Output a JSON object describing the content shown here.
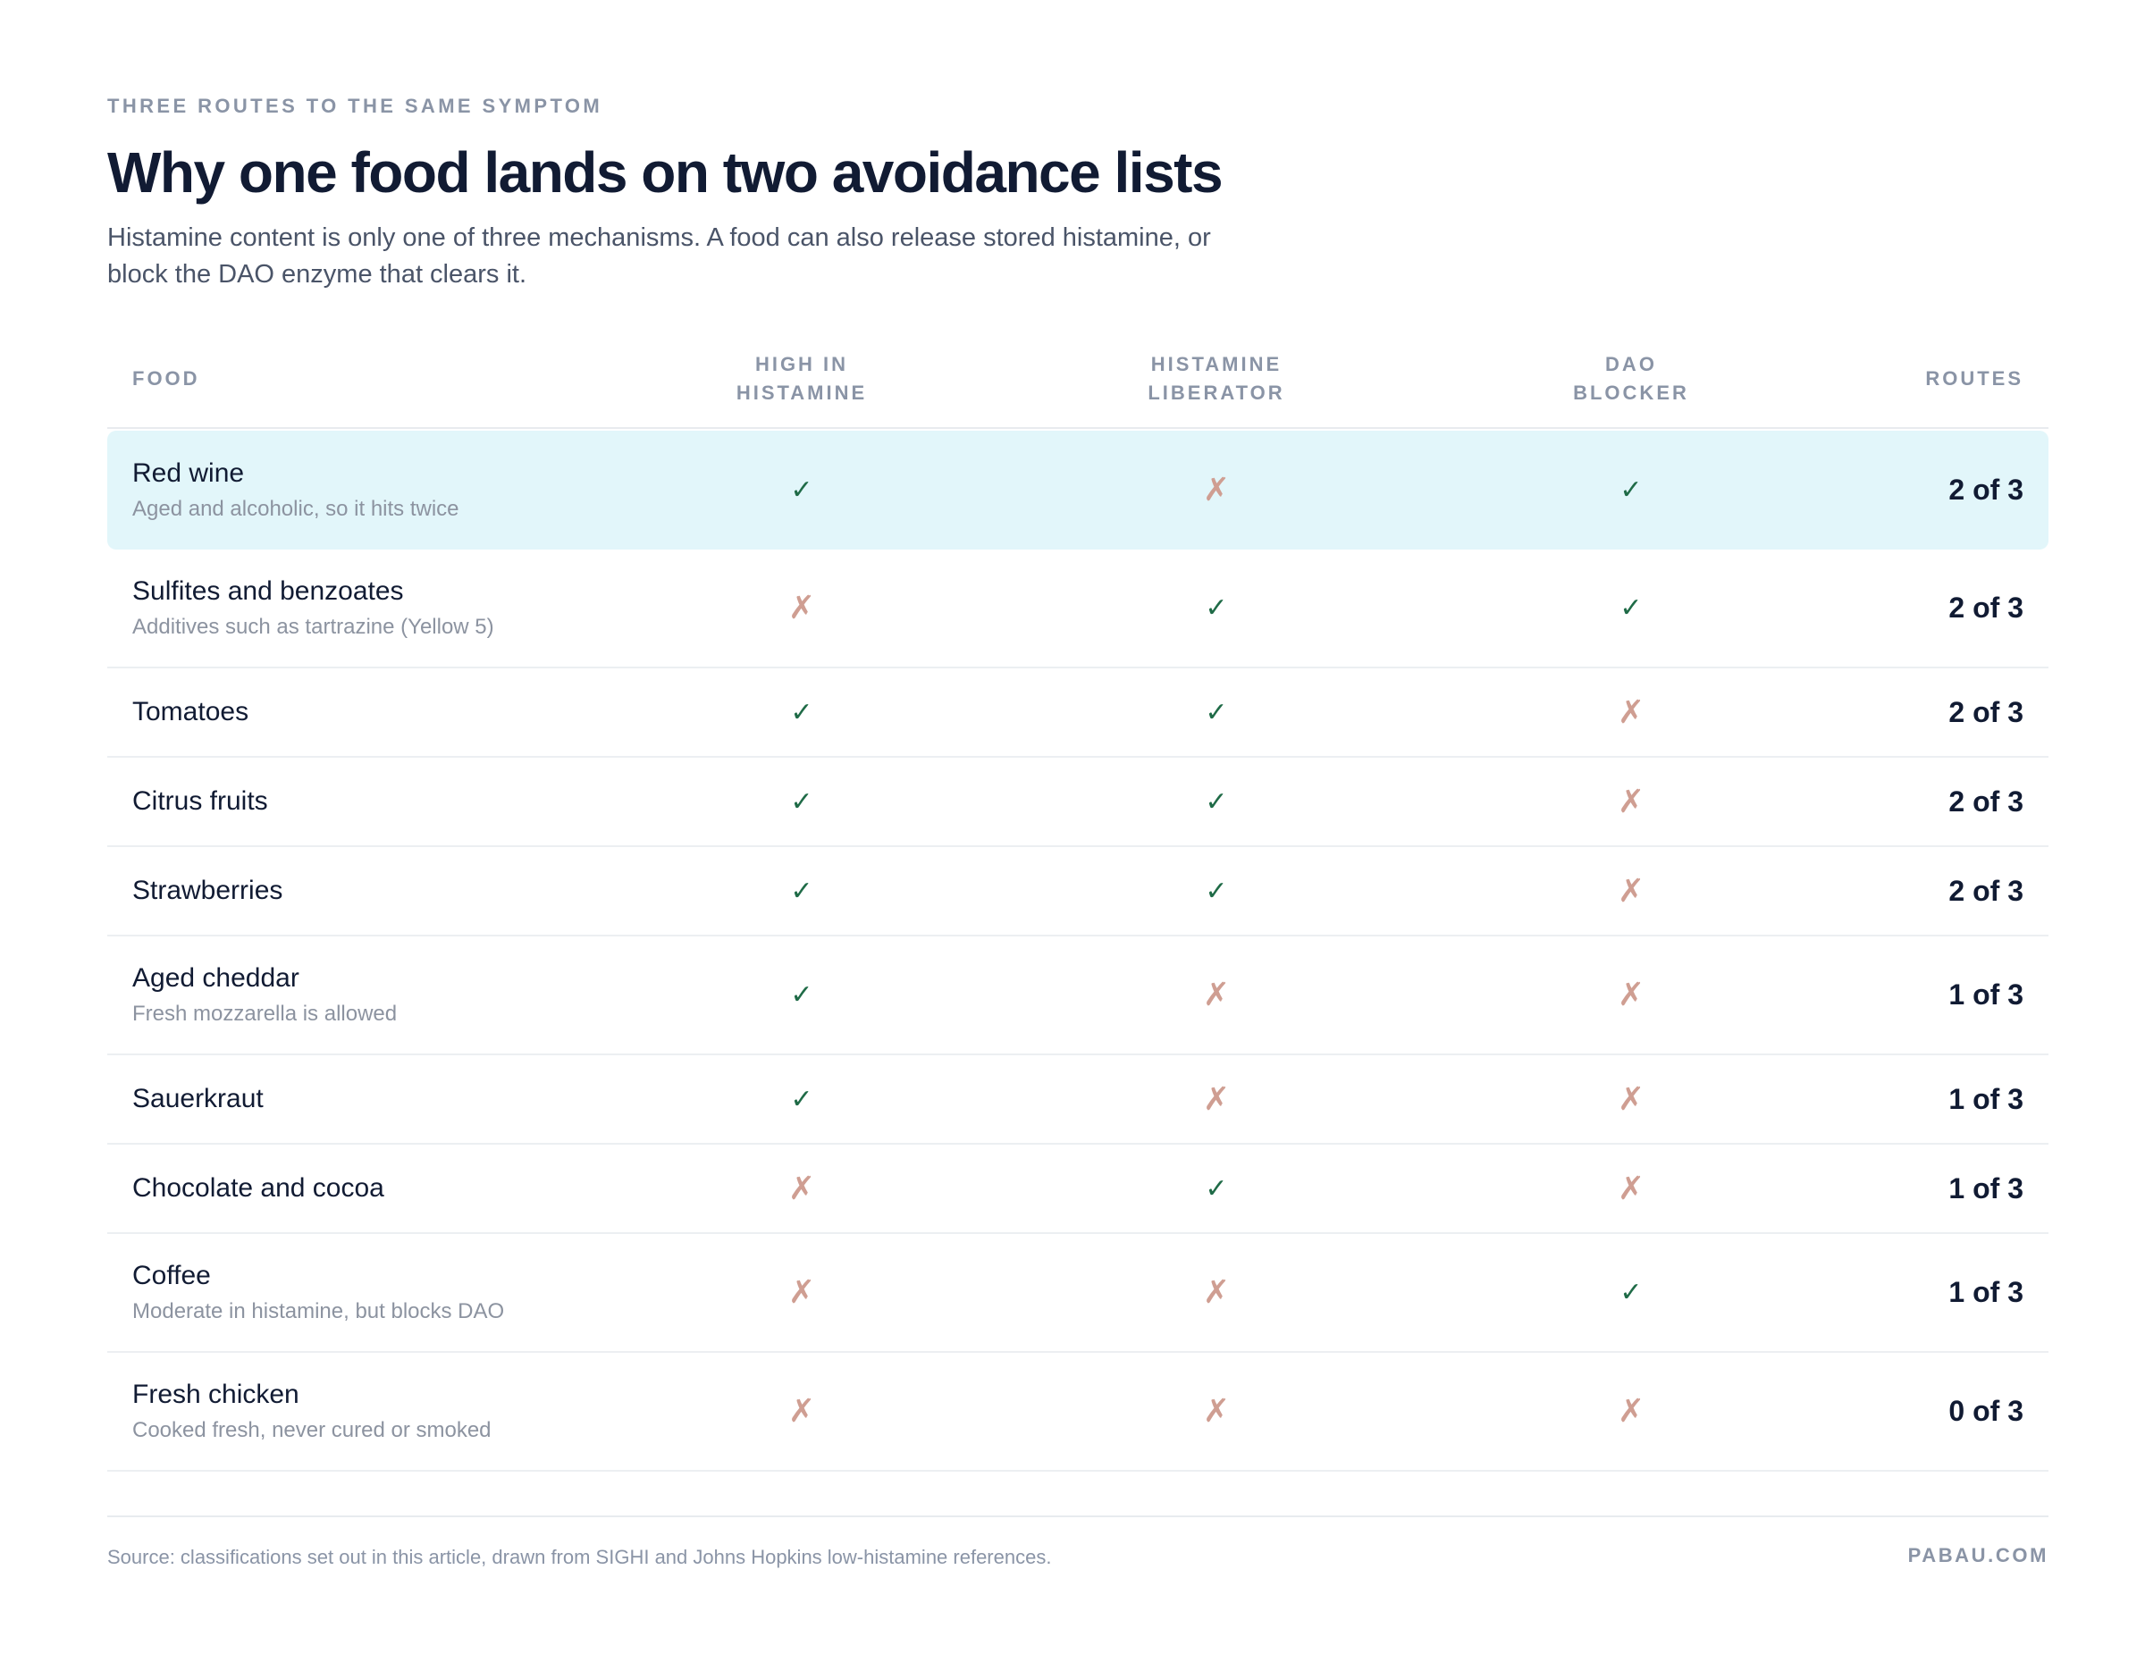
{
  "header": {
    "kicker": "THREE ROUTES TO THE SAME SYMPTOM",
    "title": "Why one food lands on two avoidance lists",
    "subtitle": "Histamine content is only one of three mechanisms. A food can also release stored histamine, or block the DAO enzyme that clears it."
  },
  "chart_data": {
    "type": "table",
    "columns": [
      "FOOD",
      "HIGH IN\nHISTAMINE",
      "HISTAMINE\nLIBERATOR",
      "DAO\nBLOCKER",
      "ROUTES"
    ],
    "rows": [
      {
        "food": "Red wine",
        "note": "Aged and alcoholic, so it hits twice",
        "high": true,
        "liberator": false,
        "dao": true,
        "routes": "2 of 3",
        "highlighted": true
      },
      {
        "food": "Sulfites and benzoates",
        "note": "Additives such as tartrazine (Yellow 5)",
        "high": false,
        "liberator": true,
        "dao": true,
        "routes": "2 of 3"
      },
      {
        "food": "Tomatoes",
        "note": "",
        "high": true,
        "liberator": true,
        "dao": false,
        "routes": "2 of 3"
      },
      {
        "food": "Citrus fruits",
        "note": "",
        "high": true,
        "liberator": true,
        "dao": false,
        "routes": "2 of 3"
      },
      {
        "food": "Strawberries",
        "note": "",
        "high": true,
        "liberator": true,
        "dao": false,
        "routes": "2 of 3"
      },
      {
        "food": "Aged cheddar",
        "note": "Fresh mozzarella is allowed",
        "high": true,
        "liberator": false,
        "dao": false,
        "routes": "1 of 3"
      },
      {
        "food": "Sauerkraut",
        "note": "",
        "high": true,
        "liberator": false,
        "dao": false,
        "routes": "1 of 3"
      },
      {
        "food": "Chocolate and cocoa",
        "note": "",
        "high": false,
        "liberator": true,
        "dao": false,
        "routes": "1 of 3"
      },
      {
        "food": "Coffee",
        "note": "Moderate in histamine, but blocks DAO",
        "high": false,
        "liberator": false,
        "dao": true,
        "routes": "1 of 3"
      },
      {
        "food": "Fresh chicken",
        "note": "Cooked fresh, never cured or smoked",
        "high": false,
        "liberator": false,
        "dao": false,
        "routes": "0 of 3"
      }
    ],
    "marks": {
      "yes": "✓",
      "no": "✗"
    }
  },
  "colors": {
    "highlight_row": "#e2f6fa",
    "yes_mark": "#1f6b47",
    "no_mark": "#cf9e92"
  },
  "footer": {
    "source": "Source: classifications set out in this article, drawn from SIGHI and Johns Hopkins low-histamine references.",
    "brand": "PABAU.COM"
  }
}
